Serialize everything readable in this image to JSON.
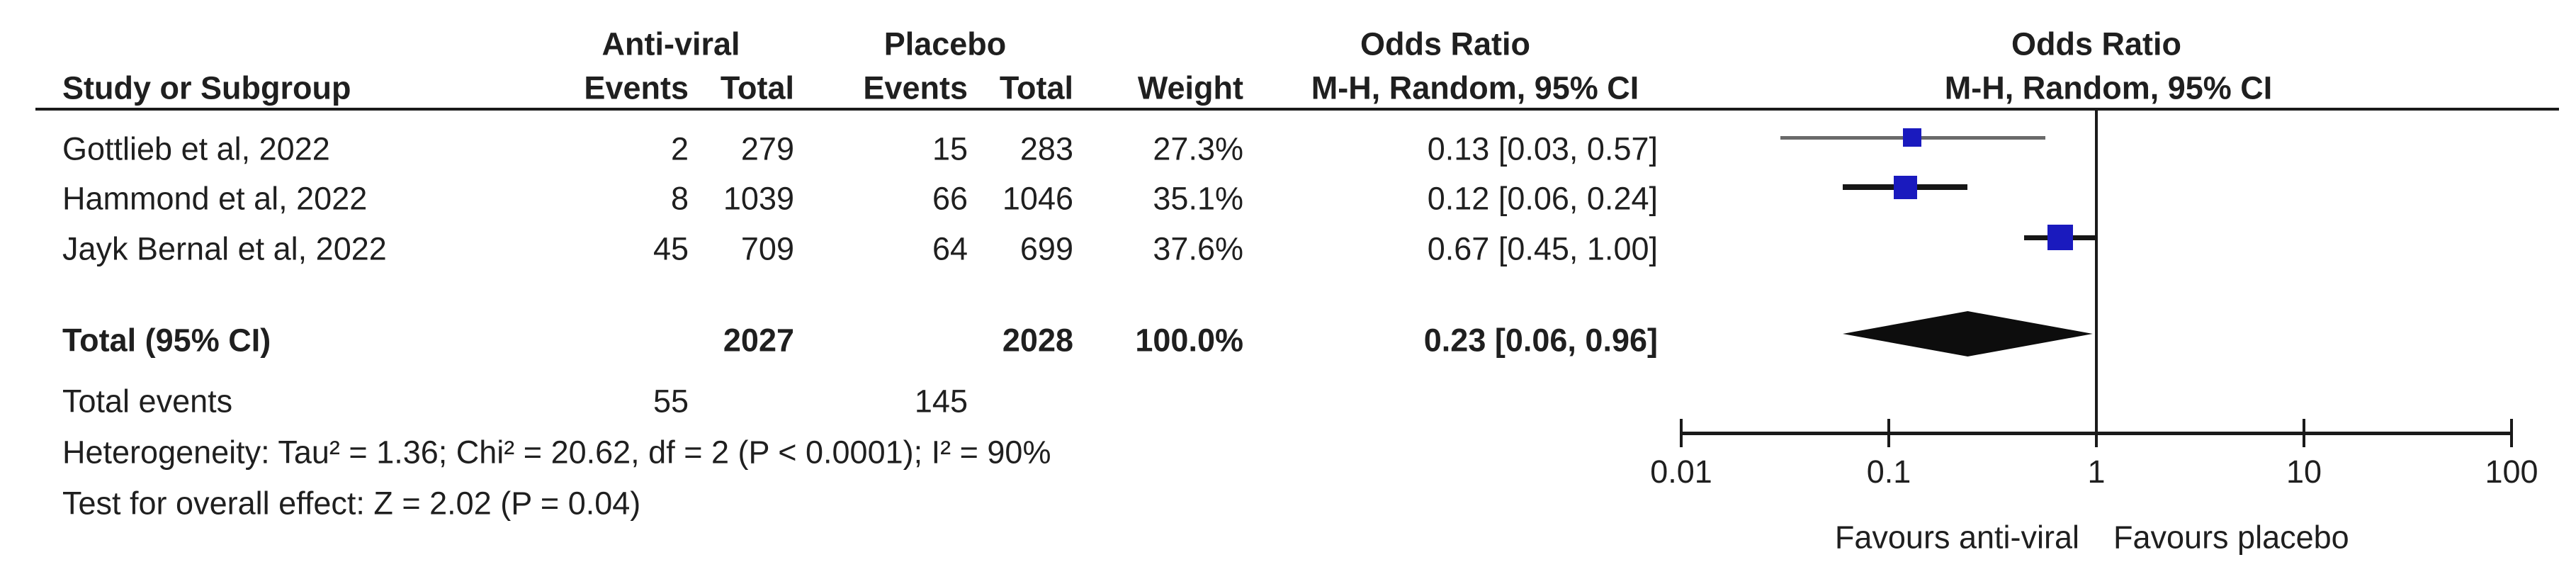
{
  "table": {
    "header": {
      "group1": "Anti-viral",
      "group2": "Placebo",
      "col_study": "Study or Subgroup",
      "col_events": "Events",
      "col_total": "Total",
      "col_weight": "Weight",
      "or_label": "Odds Ratio",
      "or_method": "M-H, Random, 95% CI"
    },
    "studies": [
      {
        "name": "Gottlieb et al, 2022",
        "av_events": "2",
        "av_total": "279",
        "p_events": "15",
        "p_total": "283",
        "weight": "27.3%",
        "ci_text": "0.13 [0.03, 0.57]"
      },
      {
        "name": "Hammond et al, 2022",
        "av_events": "8",
        "av_total": "1039",
        "p_events": "66",
        "p_total": "1046",
        "weight": "35.1%",
        "ci_text": "0.12 [0.06, 0.24]"
      },
      {
        "name": "Jayk Bernal et al, 2022",
        "av_events": "45",
        "av_total": "709",
        "p_events": "64",
        "p_total": "699",
        "weight": "37.6%",
        "ci_text": "0.67 [0.45, 1.00]"
      }
    ],
    "total_row": {
      "label": "Total (95% CI)",
      "av_total": "2027",
      "p_total": "2028",
      "weight": "100.0%",
      "ci_text": "0.23 [0.06, 0.96]"
    },
    "total_events": {
      "label": "Total events",
      "av": "55",
      "p": "145"
    },
    "heterogeneity": "Heterogeneity: Tau² = 1.36; Chi² = 20.62, df = 2 (P < 0.0001); I² = 90%",
    "overall_effect": "Test for overall effect: Z = 2.02 (P = 0.04)"
  },
  "chart_data": {
    "type": "forest",
    "x_scale": "log10",
    "axis": {
      "min": 0.01,
      "max": 100,
      "ticks": [
        {
          "value": 0.01,
          "label": "0.01"
        },
        {
          "value": 0.1,
          "label": "0.1"
        },
        {
          "value": 1,
          "label": "1"
        },
        {
          "value": 10,
          "label": "10"
        },
        {
          "value": 100,
          "label": "100"
        }
      ]
    },
    "studies": [
      {
        "name": "Gottlieb et al, 2022",
        "or": 0.13,
        "ci_low": 0.03,
        "ci_high": 0.57,
        "weight_pct": 27.3
      },
      {
        "name": "Hammond et al, 2022",
        "or": 0.12,
        "ci_low": 0.06,
        "ci_high": 0.24,
        "weight_pct": 35.1
      },
      {
        "name": "Jayk Bernal et al, 2022",
        "or": 0.67,
        "ci_low": 0.45,
        "ci_high": 1.0,
        "weight_pct": 37.6
      }
    ],
    "total": {
      "or": 0.23,
      "ci_low": 0.06,
      "ci_high": 0.96
    },
    "footer_left": "Favours anti-viral",
    "footer_right": "Favours placebo",
    "colors": {
      "line": "#1a1a1a",
      "square": "#1a1abe",
      "diamond": "#0d0d0d",
      "ci_dark": "#161616",
      "ci_light": "#6a6a6a"
    },
    "ci_line_weights": [
      5,
      8,
      7
    ]
  }
}
